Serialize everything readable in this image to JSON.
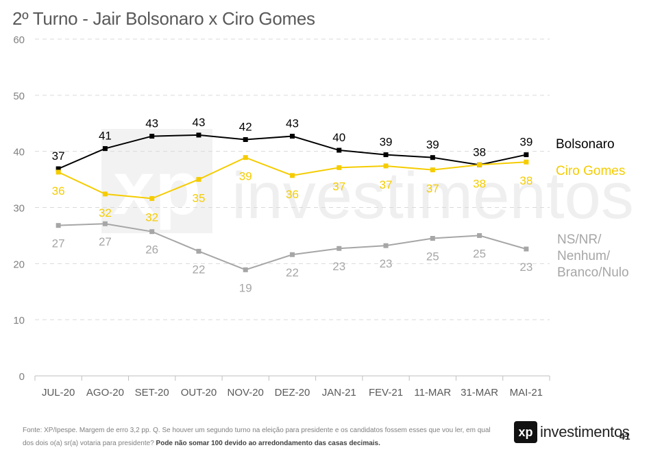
{
  "title": "2º Turno - Jair Bolsonaro x Ciro Gomes",
  "footer": {
    "note": "Fonte: XP/Ipespe. Margem de erro 3,2 pp. Q. Se houver um segundo turno na eleição para presidente e os candidatos fossem esses que vou ler, em qual dos dois o(a) sr(a) votaria para presidente?",
    "note_bold": "Pode não somar 100 devido ao arredondamento das casas decimais.",
    "logo_mark": "xp",
    "logo_word": "investimentos",
    "page": "41"
  },
  "watermark": {
    "mark": "xp",
    "word": "investimentos"
  },
  "chart_data": {
    "type": "line",
    "title": "2º Turno - Jair Bolsonaro x Ciro Gomes",
    "categories": [
      "JUL-20",
      "AGO-20",
      "SET-20",
      "OUT-20",
      "NOV-20",
      "DEZ-20",
      "JAN-21",
      "FEV-21",
      "11-MAR",
      "31-MAR",
      "MAI-21"
    ],
    "ylim": [
      0,
      60
    ],
    "yticks": [
      0,
      10,
      20,
      30,
      40,
      50,
      60
    ],
    "grid": true,
    "series": [
      {
        "name": "Bolsonaro",
        "color": "#000000",
        "values": [
          36.9,
          40.5,
          42.7,
          42.9,
          42.1,
          42.7,
          40.2,
          39.4,
          38.9,
          37.6,
          39.4
        ],
        "labels": [
          "37",
          "41",
          "43",
          "43",
          "42",
          "43",
          "40",
          "39",
          "39",
          "38",
          "39"
        ]
      },
      {
        "name": "Ciro Gomes",
        "color": "#f5cc00",
        "values": [
          36.3,
          32.4,
          31.6,
          35.0,
          38.9,
          35.7,
          37.1,
          37.4,
          36.7,
          37.6,
          38.1
        ],
        "labels": [
          "36",
          "32",
          "32",
          "35",
          "39",
          "36",
          "37",
          "37",
          "37",
          "38",
          "38"
        ]
      },
      {
        "name": "NS/NR/ Nenhum/ Branco/Nulo",
        "color": "#a6a6a6",
        "values": [
          26.8,
          27.1,
          25.7,
          22.2,
          18.9,
          21.6,
          22.7,
          23.2,
          24.5,
          25.0,
          22.6
        ],
        "labels": [
          "27",
          "27",
          "26",
          "22",
          "19",
          "22",
          "23",
          "23",
          "25",
          "25",
          "23"
        ]
      }
    ],
    "legend": [
      {
        "lines": [
          "Bolsonaro"
        ],
        "color": "#000000"
      },
      {
        "lines": [
          "Ciro Gomes"
        ],
        "color": "#f5cc00"
      },
      {
        "lines": [
          "NS/NR/",
          "Nenhum/",
          "Branco/Nulo"
        ],
        "color": "#a6a6a6"
      }
    ]
  }
}
